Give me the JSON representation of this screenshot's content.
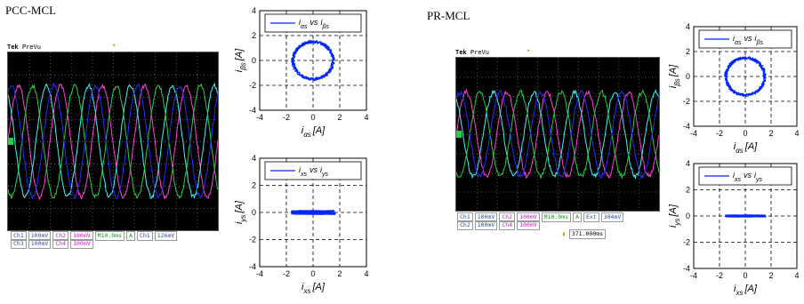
{
  "panels": [
    {
      "title": "PCC-MCL",
      "scope": {
        "brand": "Tek",
        "mode": "PreVu",
        "status_rows": [
          [
            "Ch1",
            "100mV",
            "Ch2",
            "100mV",
            "M10.0ms",
            "A",
            "Ch1",
            "126mV"
          ],
          [
            "Ch3",
            "100mV",
            "Ch4",
            "100mV"
          ]
        ],
        "extra": ""
      },
      "plots": [
        {
          "legend": "i_αs vs i_βs",
          "legend_main": [
            "i",
            "αs",
            "vs",
            "i",
            "βs"
          ],
          "xlabel": "i_αs [A]",
          "ylabel": "i_βs [A]"
        },
        {
          "legend": "i_xs vs i_ys",
          "legend_main": [
            "i",
            "xs",
            "vs",
            "i",
            "ys"
          ],
          "xlabel": "i_xs [A]",
          "ylabel": "i_ys [A]"
        }
      ]
    },
    {
      "title": "PR-MCL",
      "scope": {
        "brand": "Tek",
        "mode": "PreVu",
        "status_rows": [
          [
            "Ch1",
            "100mV",
            "Ch2",
            "100mV",
            "M10.0ms",
            "A",
            "Ext",
            "304mV"
          ],
          [
            "Ch2",
            "100mV",
            "Ch4",
            "100mV"
          ]
        ],
        "extra": "371.000ms"
      },
      "plots": [
        {
          "legend": "i_αs vs i_βs",
          "legend_main": [
            "i",
            "αs",
            "vs",
            "i",
            "βs"
          ],
          "xlabel": "i_αs [A]",
          "ylabel": "i_βs [A]"
        },
        {
          "legend": "i_xs vs i_ys",
          "legend_main": [
            "i",
            "xs",
            "vs",
            "i",
            "ys"
          ],
          "xlabel": "i_xs [A]",
          "ylabel": "i_ys [A]"
        }
      ]
    }
  ],
  "chart_data": [
    {
      "type": "line",
      "title": "",
      "panel": "PCC-MCL",
      "series": [
        {
          "name": "Ch1",
          "color": "#ff3fd6",
          "phase_deg": 0
        },
        {
          "name": "Ch2",
          "color": "#3cf6f6",
          "phase_deg": 120
        },
        {
          "name": "Ch3",
          "color": "#23d23a",
          "phase_deg": 240
        },
        {
          "name": "Ch4",
          "color": "#2a2aff",
          "phase_deg": 60
        }
      ],
      "cycles_shown": 5,
      "amplitude_div": 2.5,
      "divisions": [
        10,
        8
      ]
    },
    {
      "type": "scatter",
      "title": "",
      "panel": "PCC-MCL",
      "shape": "circle",
      "center": [
        0,
        0
      ],
      "radius": 1.5,
      "xlim": [
        -4,
        4
      ],
      "ylim": [
        -4,
        4
      ],
      "xticks": [
        -4,
        -2,
        0,
        2,
        4
      ],
      "yticks": [
        -4,
        -2,
        0,
        2,
        4
      ],
      "grid": true,
      "legend": "top",
      "color": "#0026ff"
    },
    {
      "type": "scatter",
      "title": "",
      "panel": "PCC-MCL",
      "shape": "segment",
      "x_range": [
        -1.7,
        1.7
      ],
      "y_spread": 0.15,
      "xlim": [
        -4,
        4
      ],
      "ylim": [
        -4,
        4
      ],
      "xticks": [
        -4,
        -2,
        0,
        2,
        4
      ],
      "yticks": [
        -4,
        -2,
        0,
        2,
        4
      ],
      "grid": true,
      "legend": "top",
      "color": "#0026ff"
    },
    {
      "type": "line",
      "title": "",
      "panel": "PR-MCL",
      "series": [
        {
          "name": "Ch1",
          "color": "#ff3fd6",
          "phase_deg": 0
        },
        {
          "name": "Ch2",
          "color": "#3cf6f6",
          "phase_deg": 120
        },
        {
          "name": "Ch3",
          "color": "#23d23a",
          "phase_deg": 240
        },
        {
          "name": "Ch4",
          "color": "#2a2aff",
          "phase_deg": 60
        }
      ],
      "cycles_shown": 5,
      "amplitude_div": 2.2,
      "divisions": [
        10,
        8
      ]
    },
    {
      "type": "scatter",
      "title": "",
      "panel": "PR-MCL",
      "shape": "circle",
      "center": [
        0,
        0
      ],
      "radius": 1.5,
      "xlim": [
        -4,
        4
      ],
      "ylim": [
        -4,
        4
      ],
      "xticks": [
        -4,
        -2,
        0,
        2,
        4
      ],
      "yticks": [
        -4,
        -2,
        0,
        2,
        4
      ],
      "grid": true,
      "legend": "top",
      "color": "#0026ff"
    },
    {
      "type": "scatter",
      "title": "",
      "panel": "PR-MCL",
      "shape": "segment",
      "x_range": [
        -1.6,
        1.6
      ],
      "y_spread": 0.08,
      "xlim": [
        -4,
        4
      ],
      "ylim": [
        -4,
        4
      ],
      "xticks": [
        -4,
        -2,
        0,
        2,
        4
      ],
      "yticks": [
        -4,
        -2,
        0,
        2,
        4
      ],
      "grid": true,
      "legend": "top",
      "color": "#0026ff"
    }
  ],
  "colors": {
    "ch1": "#ff3fd6",
    "ch2": "#3cf6f6",
    "ch3": "#23d23a",
    "ch4": "#2a2aff",
    "status_ch1": "#1e4fbf",
    "status_ch3": "#c31fc3",
    "status_ch4": "#1c8f1c",
    "scatter": "#0026ff",
    "screen_bg": "#000000"
  }
}
